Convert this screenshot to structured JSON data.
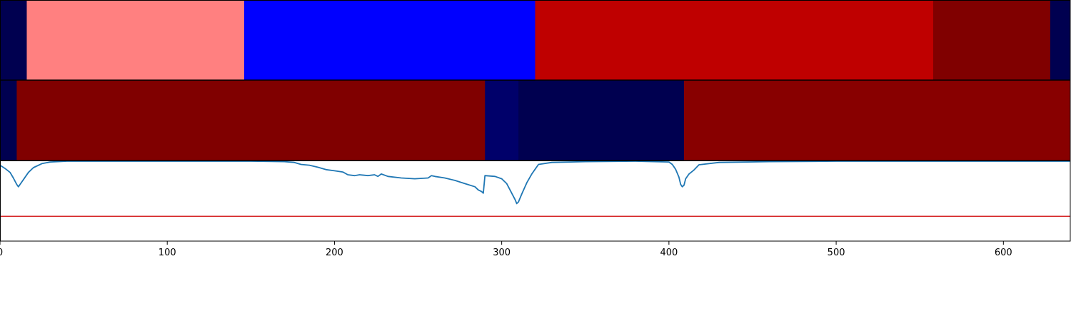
{
  "chart_data": [
    {
      "type": "heatmap",
      "title": "",
      "xlim": [
        0,
        640
      ],
      "segments": [
        {
          "start": 0,
          "end": 16,
          "color": "#000050"
        },
        {
          "start": 16,
          "end": 146,
          "color": "#ff8080"
        },
        {
          "start": 146,
          "end": 320,
          "color": "#0000ff"
        },
        {
          "start": 320,
          "end": 558,
          "color": "#bf0000"
        },
        {
          "start": 558,
          "end": 628,
          "color": "#800000"
        },
        {
          "start": 628,
          "end": 640,
          "color": "#000050"
        }
      ]
    },
    {
      "type": "heatmap",
      "title": "",
      "xlim": [
        0,
        640
      ],
      "segments": [
        {
          "start": 0,
          "end": 10,
          "color": "#000050"
        },
        {
          "start": 10,
          "end": 290,
          "color": "#800000"
        },
        {
          "start": 290,
          "end": 310,
          "color": "#00006a"
        },
        {
          "start": 310,
          "end": 409,
          "color": "#000050"
        },
        {
          "start": 409,
          "end": 640,
          "color": "#880000"
        }
      ]
    },
    {
      "type": "line",
      "title": "",
      "xlabel": "",
      "ylabel": "",
      "xlim": [
        0,
        640
      ],
      "ylim": [
        0,
        1
      ],
      "xticks": [
        0,
        100,
        200,
        300,
        400,
        500,
        600
      ],
      "threshold": {
        "y": 0.31,
        "color": "#d62728"
      },
      "series": [
        {
          "color": "#1f77b4",
          "x": [
            0,
            3,
            6,
            8,
            10,
            11,
            14,
            17,
            20,
            25,
            30,
            40,
            60,
            100,
            150,
            170,
            176,
            180,
            185,
            190,
            195,
            200,
            205,
            208,
            212,
            215,
            220,
            224,
            226,
            228,
            232,
            240,
            248,
            256,
            258,
            260,
            266,
            272,
            278,
            284,
            286,
            288,
            289,
            290,
            296,
            300,
            303,
            306,
            308,
            309,
            310,
            312,
            315,
            318,
            320,
            322,
            330,
            350,
            380,
            400,
            402,
            404,
            406,
            407,
            408,
            409,
            410,
            412,
            415,
            418,
            430,
            460,
            500,
            640
          ],
          "y": [
            0.95,
            0.91,
            0.86,
            0.79,
            0.71,
            0.68,
            0.77,
            0.86,
            0.92,
            0.97,
            0.99,
            1.0,
            1.0,
            1.0,
            1.0,
            0.995,
            0.985,
            0.96,
            0.95,
            0.925,
            0.895,
            0.88,
            0.865,
            0.83,
            0.82,
            0.83,
            0.82,
            0.83,
            0.81,
            0.84,
            0.81,
            0.79,
            0.78,
            0.79,
            0.82,
            0.81,
            0.79,
            0.76,
            0.72,
            0.68,
            0.64,
            0.62,
            0.6,
            0.82,
            0.81,
            0.78,
            0.72,
            0.6,
            0.52,
            0.47,
            0.49,
            0.59,
            0.73,
            0.84,
            0.9,
            0.96,
            0.985,
            0.995,
            1.0,
            0.99,
            0.96,
            0.9,
            0.8,
            0.71,
            0.68,
            0.7,
            0.78,
            0.84,
            0.89,
            0.955,
            0.985,
            0.995,
            1.0,
            1.0
          ]
        }
      ]
    }
  ]
}
